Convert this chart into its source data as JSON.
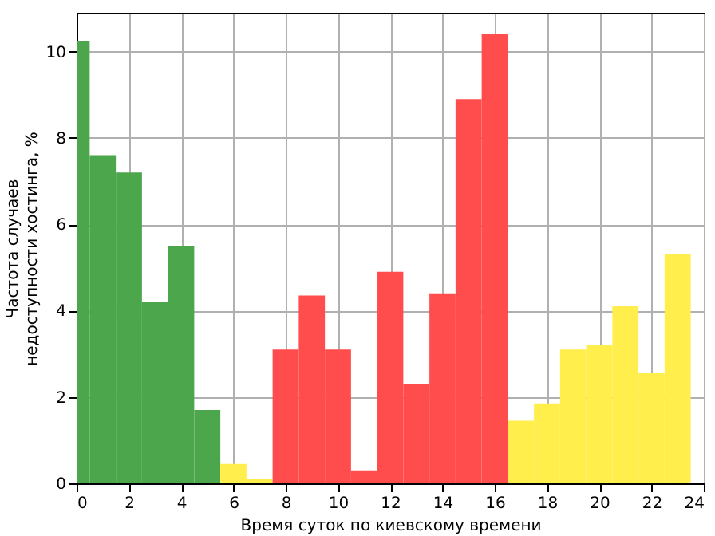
{
  "chart_data": {
    "type": "histogram",
    "xlabel": "Время суток по киевскому времени",
    "ylabel": "Частота случаев недоступности хостинга, %",
    "bins": [
      0,
      0.5,
      1.5,
      2.5,
      3.5,
      4.5,
      5.5,
      6.5,
      7.5,
      8.5,
      9.5,
      10.5,
      11.5,
      12.5,
      13.5,
      14.5,
      15.5,
      16.5,
      17.5,
      18.5,
      19.5,
      20.5,
      21.5,
      22.5,
      23.5
    ],
    "values": [
      10.25,
      7.6,
      7.2,
      4.2,
      5.5,
      1.7,
      0.45,
      0.1,
      3.1,
      4.35,
      3.1,
      0.3,
      4.9,
      2.3,
      4.4,
      8.9,
      10.4,
      1.45,
      1.85,
      3.1,
      3.2,
      4.1,
      2.55,
      5.3
    ],
    "colors": [
      "#4ca64c",
      "#4ca64c",
      "#4ca64c",
      "#4ca64c",
      "#4ca64c",
      "#4ca64c",
      "#ffee4c",
      "#ffee4c",
      "#ff4c4c",
      "#ff4c4c",
      "#ff4c4c",
      "#ff4c4c",
      "#ff4c4c",
      "#ff4c4c",
      "#ff4c4c",
      "#ff4c4c",
      "#ff4c4c",
      "#ffee4c",
      "#ffee4c",
      "#ffee4c",
      "#ffee4c",
      "#ffee4c",
      "#ffee4c",
      "#ffee4c"
    ],
    "xlim": [
      0,
      24
    ],
    "xticks": [
      0,
      2,
      4,
      6,
      8,
      10,
      12,
      14,
      16,
      18,
      20,
      22,
      24
    ],
    "ylim": [
      0,
      10.9
    ],
    "yticks": [
      0,
      2,
      4,
      6,
      8,
      10
    ],
    "grid": true
  }
}
